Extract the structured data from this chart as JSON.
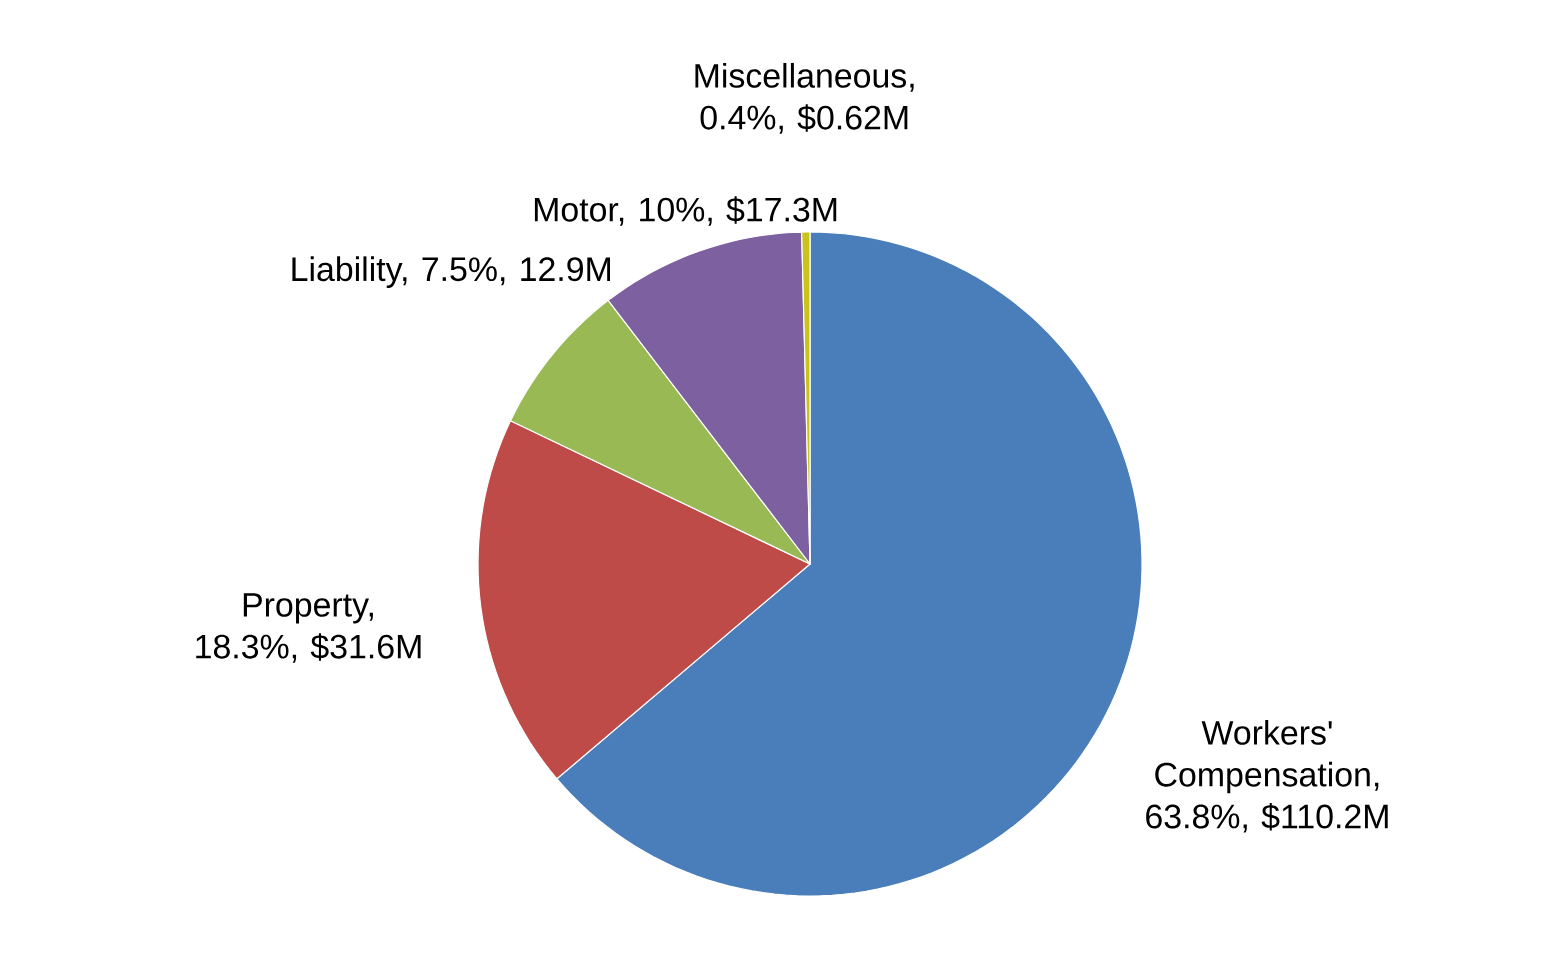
{
  "chart_data": {
    "type": "pie",
    "categories": [
      "Workers' Compensation, 63.8%, $110.2M",
      "Property, 18.3%, $31.6M",
      "Liability, 7.5%, 12.9M",
      "Motor, 10%, $17.3M",
      "Miscellaneous, 0.4%, $0.62M"
    ],
    "values": [
      63.8,
      18.3,
      7.5,
      10,
      0.4
    ],
    "colors": [
      "#4a7ebb",
      "#be4b48",
      "#98b954",
      "#7d60a0",
      "#c8c41a"
    ]
  }
}
